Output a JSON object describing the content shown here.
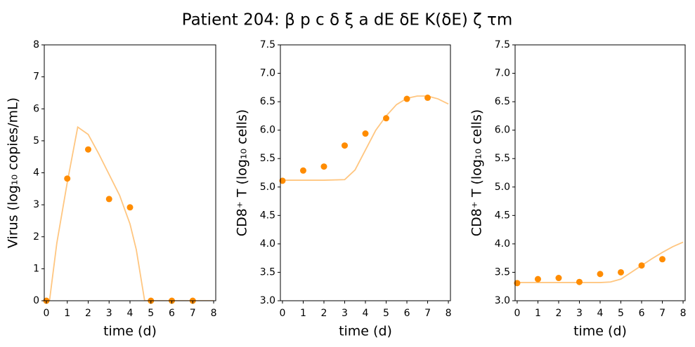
{
  "title": "Patient 204: β p c δ ξ a dE δE K(δE) ζ τm",
  "chart_data": [
    {
      "type": "scatter",
      "xlabel": "time (d)",
      "ylabel": "Virus (log₁₀ copies/mL)",
      "xlim": [
        -0.1,
        8.1
      ],
      "xticks": [
        0,
        1,
        2,
        3,
        4,
        5,
        6,
        7,
        8
      ],
      "ylim": [
        0,
        8
      ],
      "yticks": [
        0,
        1,
        2,
        3,
        4,
        5,
        6,
        7,
        8
      ],
      "series": [
        {
          "mode": "line",
          "color": "#ffc680",
          "x": [
            0,
            0.15,
            0.5,
            1,
            1.5,
            2,
            2.5,
            3,
            3.5,
            4,
            4.3,
            4.5,
            4.7,
            5,
            6,
            7,
            8
          ],
          "values": [
            0,
            0,
            1.8,
            3.7,
            5.43,
            5.2,
            4.6,
            3.95,
            3.3,
            2.4,
            1.6,
            0.8,
            0,
            0,
            0,
            0,
            0
          ]
        },
        {
          "mode": "markers",
          "color": "#ff8c00",
          "x": [
            0,
            1,
            2,
            3,
            4,
            5,
            6,
            7
          ],
          "values": [
            0,
            3.82,
            4.73,
            3.18,
            2.92,
            0,
            0,
            0
          ]
        }
      ]
    },
    {
      "type": "scatter",
      "xlabel": "time (d)",
      "ylabel": "CD8⁺ T (log₁₀ cells)",
      "xlim": [
        -0.1,
        8.1
      ],
      "xticks": [
        0,
        1,
        2,
        3,
        4,
        5,
        6,
        7,
        8
      ],
      "ylim": [
        3,
        7.5
      ],
      "yticks": [
        {
          "value": 3,
          "label": "3.0"
        },
        3.5,
        {
          "value": 4,
          "label": "4.0"
        },
        4.5,
        {
          "value": 5,
          "label": "5.0"
        },
        5.5,
        {
          "value": 6,
          "label": "6.0"
        },
        6.5,
        {
          "value": 7,
          "label": "7.0"
        },
        7.5
      ],
      "series": [
        {
          "mode": "line",
          "color": "#ffc680",
          "x": [
            0,
            1,
            2,
            3,
            3.5,
            4,
            4.5,
            5,
            5.5,
            6,
            6.5,
            7,
            7.5,
            8
          ],
          "values": [
            5.12,
            5.12,
            5.12,
            5.13,
            5.3,
            5.65,
            6.0,
            6.25,
            6.45,
            6.56,
            6.6,
            6.6,
            6.55,
            6.46
          ]
        },
        {
          "mode": "markers",
          "color": "#ff8c00",
          "x": [
            0,
            1,
            2,
            3,
            4,
            5,
            6,
            7
          ],
          "values": [
            5.11,
            5.29,
            5.36,
            5.73,
            5.94,
            6.21,
            6.55,
            6.57
          ]
        }
      ]
    },
    {
      "type": "scatter",
      "xlabel": "time (d)",
      "ylabel": "CD8⁺ T (log₁₀ cells)",
      "xlim": [
        -0.1,
        8.1
      ],
      "xticks": [
        0,
        1,
        2,
        3,
        4,
        5,
        6,
        7,
        8
      ],
      "ylim": [
        3,
        7.5
      ],
      "yticks": [
        {
          "value": 3,
          "label": "3.0"
        },
        3.5,
        {
          "value": 4,
          "label": "4.0"
        },
        4.5,
        {
          "value": 5,
          "label": "5.0"
        },
        5.5,
        {
          "value": 6,
          "label": "6.0"
        },
        6.5,
        {
          "value": 7,
          "label": "7.0"
        },
        7.5
      ],
      "series": [
        {
          "mode": "line",
          "color": "#ffc680",
          "x": [
            0,
            1,
            2,
            3,
            4,
            4.5,
            5,
            5.5,
            6,
            6.5,
            7,
            7.5,
            8
          ],
          "values": [
            3.32,
            3.32,
            3.32,
            3.32,
            3.32,
            3.33,
            3.38,
            3.5,
            3.62,
            3.74,
            3.85,
            3.95,
            4.03
          ]
        },
        {
          "mode": "markers",
          "color": "#ff8c00",
          "x": [
            0,
            1,
            2,
            3,
            4,
            5,
            6,
            7
          ],
          "values": [
            3.31,
            3.38,
            3.4,
            3.33,
            3.47,
            3.5,
            3.62,
            3.73
          ]
        }
      ]
    }
  ]
}
